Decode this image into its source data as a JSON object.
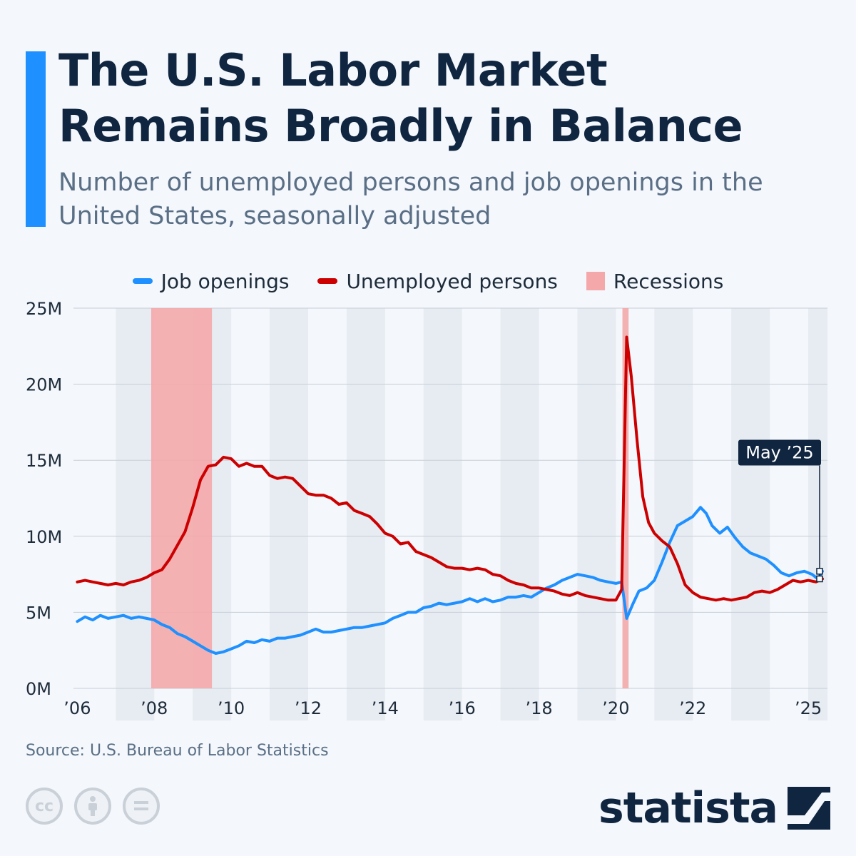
{
  "header": {
    "title": "The U.S. Labor Market Remains Broadly in Balance",
    "subtitle": "Number of unemployed persons and job openings in the United States, seasonally adjusted"
  },
  "legend": {
    "job_openings": "Job openings",
    "unemployed": "Unemployed persons",
    "recessions": "Recessions"
  },
  "footer": {
    "source": "Source: U.S. Bureau of Labor Statistics",
    "brand": "statista",
    "license_icons": [
      "cc-icon",
      "attribution-icon",
      "no-derivatives-icon"
    ]
  },
  "colors": {
    "job_openings": "#1e90ff",
    "unemployed": "#cc0000",
    "recessions": "#f4a8aa",
    "title": "#0f2540",
    "accent": "#1e90ff"
  },
  "chart_data": {
    "type": "line",
    "x_unit": "year",
    "x_range": [
      2005.9,
      2025.5
    ],
    "ylim": [
      0,
      25
    ],
    "y_unit": "M",
    "y_ticks": [
      0,
      5,
      10,
      15,
      20,
      25
    ],
    "y_tick_labels": [
      "0M",
      "5M",
      "10M",
      "15M",
      "20M",
      "25M"
    ],
    "x_ticks": [
      2006,
      2008,
      2010,
      2012,
      2014,
      2016,
      2018,
      2020,
      2022,
      2025
    ],
    "x_tick_labels": [
      "’06",
      "’08",
      "’10",
      "’12",
      "’14",
      "’16",
      "’18",
      "’20",
      "’22",
      "’25"
    ],
    "grid": true,
    "alternating_year_bands": true,
    "legend_position": "top-center",
    "recessions": [
      [
        2007.92,
        2009.5
      ],
      [
        2020.17,
        2020.33
      ]
    ],
    "annotation": {
      "label": "May ’25",
      "x": 2025.37
    },
    "series": [
      {
        "name": "Job openings",
        "points": [
          [
            2006.0,
            4.4
          ],
          [
            2006.2,
            4.7
          ],
          [
            2006.4,
            4.5
          ],
          [
            2006.6,
            4.8
          ],
          [
            2006.8,
            4.6
          ],
          [
            2007.0,
            4.7
          ],
          [
            2007.2,
            4.8
          ],
          [
            2007.4,
            4.6
          ],
          [
            2007.6,
            4.7
          ],
          [
            2007.8,
            4.6
          ],
          [
            2008.0,
            4.5
          ],
          [
            2008.2,
            4.2
          ],
          [
            2008.4,
            4.0
          ],
          [
            2008.6,
            3.6
          ],
          [
            2008.8,
            3.4
          ],
          [
            2009.0,
            3.1
          ],
          [
            2009.2,
            2.8
          ],
          [
            2009.4,
            2.5
          ],
          [
            2009.6,
            2.3
          ],
          [
            2009.8,
            2.4
          ],
          [
            2010.0,
            2.6
          ],
          [
            2010.2,
            2.8
          ],
          [
            2010.4,
            3.1
          ],
          [
            2010.6,
            3.0
          ],
          [
            2010.8,
            3.2
          ],
          [
            2011.0,
            3.1
          ],
          [
            2011.2,
            3.3
          ],
          [
            2011.4,
            3.3
          ],
          [
            2011.6,
            3.4
          ],
          [
            2011.8,
            3.5
          ],
          [
            2012.0,
            3.7
          ],
          [
            2012.2,
            3.9
          ],
          [
            2012.4,
            3.7
          ],
          [
            2012.6,
            3.7
          ],
          [
            2012.8,
            3.8
          ],
          [
            2013.0,
            3.9
          ],
          [
            2013.2,
            4.0
          ],
          [
            2013.4,
            4.0
          ],
          [
            2013.6,
            4.1
          ],
          [
            2013.8,
            4.2
          ],
          [
            2014.0,
            4.3
          ],
          [
            2014.2,
            4.6
          ],
          [
            2014.4,
            4.8
          ],
          [
            2014.6,
            5.0
          ],
          [
            2014.8,
            5.0
          ],
          [
            2015.0,
            5.3
          ],
          [
            2015.2,
            5.4
          ],
          [
            2015.4,
            5.6
          ],
          [
            2015.6,
            5.5
          ],
          [
            2015.8,
            5.6
          ],
          [
            2016.0,
            5.7
          ],
          [
            2016.2,
            5.9
          ],
          [
            2016.4,
            5.7
          ],
          [
            2016.6,
            5.9
          ],
          [
            2016.8,
            5.7
          ],
          [
            2017.0,
            5.8
          ],
          [
            2017.2,
            6.0
          ],
          [
            2017.4,
            6.0
          ],
          [
            2017.6,
            6.1
          ],
          [
            2017.8,
            6.0
          ],
          [
            2018.0,
            6.3
          ],
          [
            2018.2,
            6.6
          ],
          [
            2018.4,
            6.8
          ],
          [
            2018.6,
            7.1
          ],
          [
            2018.8,
            7.3
          ],
          [
            2019.0,
            7.5
          ],
          [
            2019.2,
            7.4
          ],
          [
            2019.4,
            7.3
          ],
          [
            2019.6,
            7.1
          ],
          [
            2019.8,
            7.0
          ],
          [
            2020.0,
            6.9
          ],
          [
            2020.15,
            7.0
          ],
          [
            2020.28,
            4.6
          ],
          [
            2020.45,
            5.6
          ],
          [
            2020.6,
            6.4
          ],
          [
            2020.8,
            6.6
          ],
          [
            2021.0,
            7.1
          ],
          [
            2021.2,
            8.3
          ],
          [
            2021.4,
            9.6
          ],
          [
            2021.6,
            10.7
          ],
          [
            2021.8,
            11.0
          ],
          [
            2022.0,
            11.3
          ],
          [
            2022.2,
            11.9
          ],
          [
            2022.35,
            11.5
          ],
          [
            2022.5,
            10.7
          ],
          [
            2022.7,
            10.2
          ],
          [
            2022.9,
            10.6
          ],
          [
            2023.1,
            9.9
          ],
          [
            2023.3,
            9.3
          ],
          [
            2023.5,
            8.9
          ],
          [
            2023.7,
            8.7
          ],
          [
            2023.9,
            8.5
          ],
          [
            2024.1,
            8.1
          ],
          [
            2024.3,
            7.6
          ],
          [
            2024.5,
            7.4
          ],
          [
            2024.7,
            7.6
          ],
          [
            2024.9,
            7.7
          ],
          [
            2025.1,
            7.5
          ],
          [
            2025.25,
            7.2
          ],
          [
            2025.37,
            7.7
          ]
        ]
      },
      {
        "name": "Unemployed persons",
        "points": [
          [
            2006.0,
            7.0
          ],
          [
            2006.2,
            7.1
          ],
          [
            2006.4,
            7.0
          ],
          [
            2006.6,
            6.9
          ],
          [
            2006.8,
            6.8
          ],
          [
            2007.0,
            6.9
          ],
          [
            2007.2,
            6.8
          ],
          [
            2007.4,
            7.0
          ],
          [
            2007.6,
            7.1
          ],
          [
            2007.8,
            7.3
          ],
          [
            2008.0,
            7.6
          ],
          [
            2008.2,
            7.8
          ],
          [
            2008.4,
            8.5
          ],
          [
            2008.6,
            9.4
          ],
          [
            2008.8,
            10.3
          ],
          [
            2009.0,
            11.9
          ],
          [
            2009.2,
            13.7
          ],
          [
            2009.4,
            14.6
          ],
          [
            2009.6,
            14.7
          ],
          [
            2009.8,
            15.2
          ],
          [
            2010.0,
            15.1
          ],
          [
            2010.2,
            14.6
          ],
          [
            2010.4,
            14.8
          ],
          [
            2010.6,
            14.6
          ],
          [
            2010.8,
            14.6
          ],
          [
            2011.0,
            14.0
          ],
          [
            2011.2,
            13.8
          ],
          [
            2011.4,
            13.9
          ],
          [
            2011.6,
            13.8
          ],
          [
            2011.8,
            13.3
          ],
          [
            2012.0,
            12.8
          ],
          [
            2012.2,
            12.7
          ],
          [
            2012.4,
            12.7
          ],
          [
            2012.6,
            12.5
          ],
          [
            2012.8,
            12.1
          ],
          [
            2013.0,
            12.2
          ],
          [
            2013.2,
            11.7
          ],
          [
            2013.4,
            11.5
          ],
          [
            2013.6,
            11.3
          ],
          [
            2013.8,
            10.8
          ],
          [
            2014.0,
            10.2
          ],
          [
            2014.2,
            10.0
          ],
          [
            2014.4,
            9.5
          ],
          [
            2014.6,
            9.6
          ],
          [
            2014.8,
            9.0
          ],
          [
            2015.0,
            8.8
          ],
          [
            2015.2,
            8.6
          ],
          [
            2015.4,
            8.3
          ],
          [
            2015.6,
            8.0
          ],
          [
            2015.8,
            7.9
          ],
          [
            2016.0,
            7.9
          ],
          [
            2016.2,
            7.8
          ],
          [
            2016.4,
            7.9
          ],
          [
            2016.6,
            7.8
          ],
          [
            2016.8,
            7.5
          ],
          [
            2017.0,
            7.4
          ],
          [
            2017.2,
            7.1
          ],
          [
            2017.4,
            6.9
          ],
          [
            2017.6,
            6.8
          ],
          [
            2017.8,
            6.6
          ],
          [
            2018.0,
            6.6
          ],
          [
            2018.2,
            6.5
          ],
          [
            2018.4,
            6.4
          ],
          [
            2018.6,
            6.2
          ],
          [
            2018.8,
            6.1
          ],
          [
            2019.0,
            6.3
          ],
          [
            2019.2,
            6.1
          ],
          [
            2019.4,
            6.0
          ],
          [
            2019.6,
            5.9
          ],
          [
            2019.8,
            5.8
          ],
          [
            2020.0,
            5.8
          ],
          [
            2020.15,
            6.5
          ],
          [
            2020.28,
            23.1
          ],
          [
            2020.4,
            20.5
          ],
          [
            2020.55,
            16.3
          ],
          [
            2020.7,
            12.6
          ],
          [
            2020.85,
            10.9
          ],
          [
            2021.0,
            10.2
          ],
          [
            2021.2,
            9.7
          ],
          [
            2021.4,
            9.3
          ],
          [
            2021.6,
            8.2
          ],
          [
            2021.8,
            6.8
          ],
          [
            2022.0,
            6.3
          ],
          [
            2022.2,
            6.0
          ],
          [
            2022.4,
            5.9
          ],
          [
            2022.6,
            5.8
          ],
          [
            2022.8,
            5.9
          ],
          [
            2023.0,
            5.8
          ],
          [
            2023.2,
            5.9
          ],
          [
            2023.4,
            6.0
          ],
          [
            2023.6,
            6.3
          ],
          [
            2023.8,
            6.4
          ],
          [
            2024.0,
            6.3
          ],
          [
            2024.2,
            6.5
          ],
          [
            2024.4,
            6.8
          ],
          [
            2024.6,
            7.1
          ],
          [
            2024.8,
            7.0
          ],
          [
            2025.0,
            7.1
          ],
          [
            2025.2,
            7.0
          ],
          [
            2025.37,
            7.2
          ]
        ]
      }
    ]
  }
}
